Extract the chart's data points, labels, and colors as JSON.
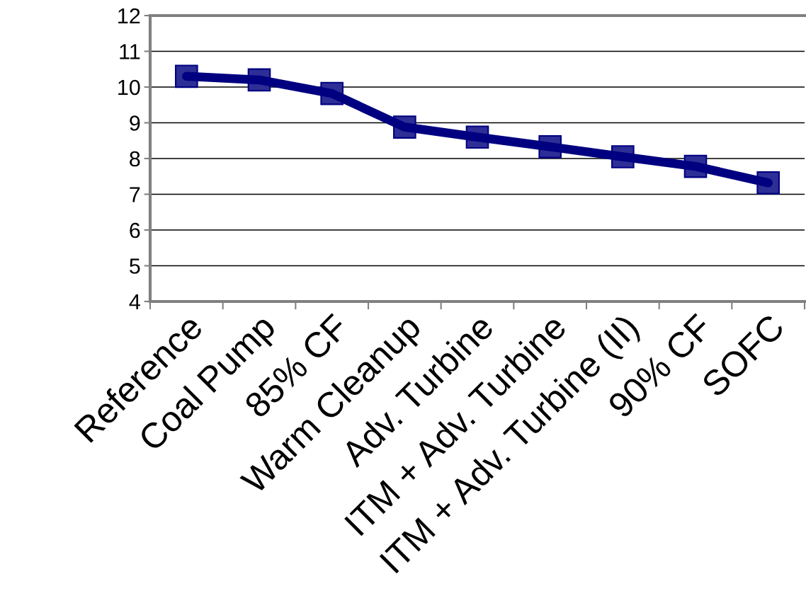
{
  "chart_data": {
    "type": "line",
    "categories": [
      "Reference",
      "Coal Pump",
      "85% CF",
      "Warm Cleanup",
      "Adv. Turbine",
      "ITM + Adv. Turbine",
      "ITM + Adv. Turbine (II)",
      "90% CF",
      "SOFC"
    ],
    "series": [
      {
        "color": "#000080",
        "values": [
          10.3,
          10.2,
          9.82,
          8.88,
          8.6,
          8.33,
          8.05,
          7.78,
          7.32
        ]
      }
    ],
    "ylim": [
      4,
      12
    ],
    "yticks": [
      4,
      5,
      6,
      7,
      8,
      9,
      10,
      11,
      12
    ],
    "grid": "y",
    "marker": "square",
    "line_style": "solid"
  }
}
